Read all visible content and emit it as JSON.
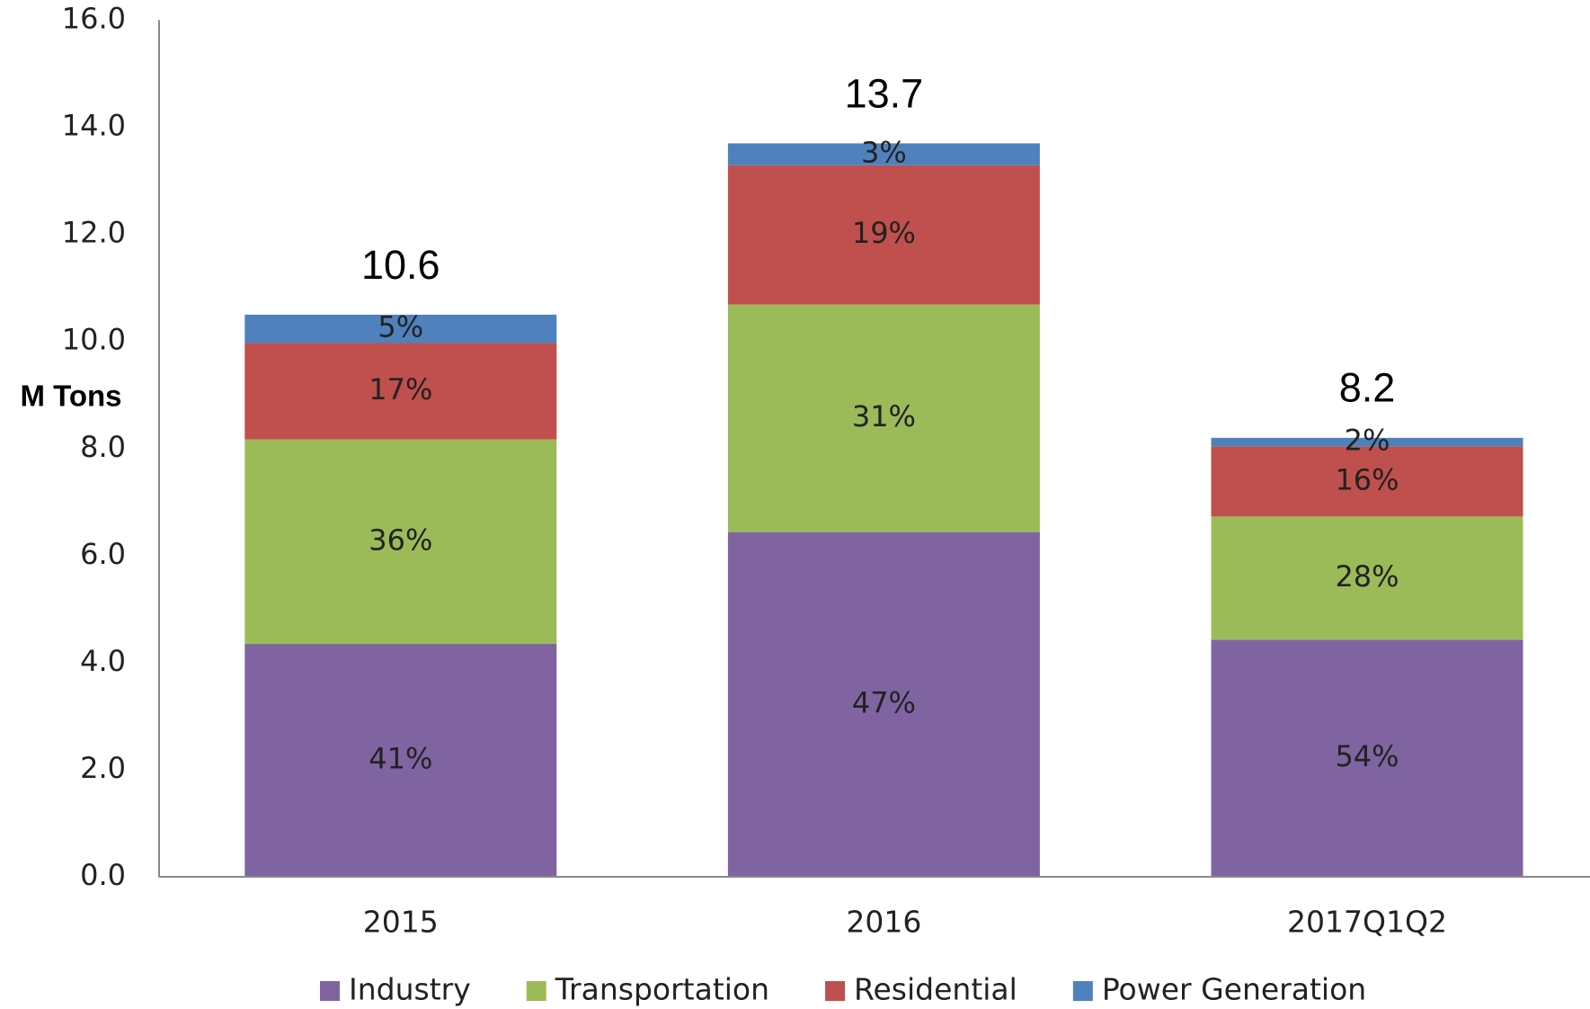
{
  "chart_data": {
    "type": "stacked_bar",
    "y_label": "M Tons",
    "categories": [
      "2015",
      "2016",
      "2017Q1Q2"
    ],
    "series": [
      {
        "name": "Industry",
        "color": "#8064a2",
        "values": [
          4.35,
          6.44,
          4.43
        ],
        "value_labels": [
          "41%",
          "47%",
          "54%"
        ]
      },
      {
        "name": "Transportation",
        "color": "#9bbb59",
        "values": [
          3.82,
          4.25,
          2.3
        ],
        "value_labels": [
          "36%",
          "31%",
          "28%"
        ]
      },
      {
        "name": "Residential",
        "color": "#c0504d",
        "values": [
          1.8,
          2.6,
          1.31
        ],
        "value_labels": [
          "17%",
          "19%",
          "16%"
        ]
      },
      {
        "name": "Power Generation",
        "color": "#4f81bd",
        "values": [
          0.53,
          0.41,
          0.16
        ],
        "value_labels": [
          "5%",
          "3%",
          "2%"
        ]
      }
    ],
    "totals": [
      10.6,
      13.7,
      8.2
    ],
    "ylim": [
      0,
      16
    ],
    "yticks": [
      {
        "value": 0,
        "label": "0.0"
      },
      {
        "value": 2,
        "label": "2.0"
      },
      {
        "value": 4,
        "label": "4.0"
      },
      {
        "value": 6,
        "label": "6.0"
      },
      {
        "value": 8,
        "label": "8.0"
      },
      {
        "value": 10,
        "label": "10.0"
      },
      {
        "value": 12,
        "label": "12.0"
      },
      {
        "value": 14,
        "label": "14.0"
      },
      {
        "value": 16,
        "label": "16.0"
      }
    ],
    "legend": "bottom"
  }
}
